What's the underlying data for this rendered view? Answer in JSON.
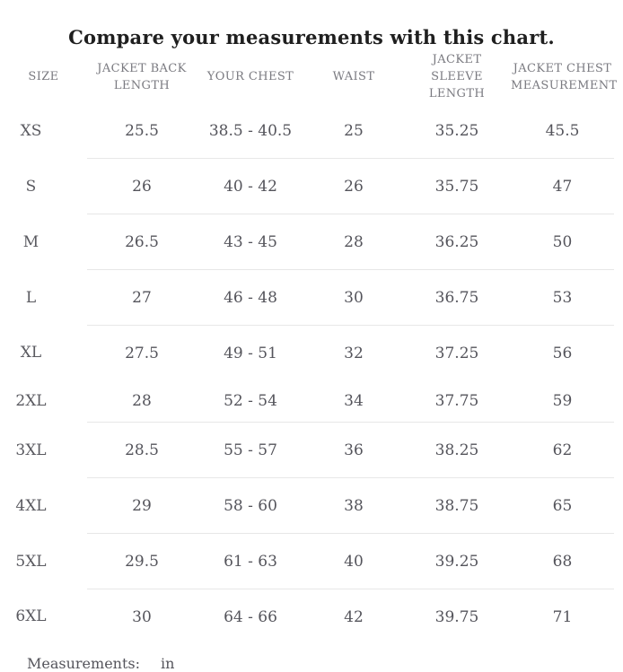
{
  "title": "Compare your measurements with this chart.",
  "chart_data": {
    "type": "table",
    "title": "Compare your measurements with this chart.",
    "columns": [
      "SIZE",
      "JACKET BACK LENGTH",
      "YOUR CHEST",
      "WAIST",
      "JACKET SLEEVE LENGTH",
      "JACKET CHEST MEASUREMENT"
    ],
    "rows": [
      [
        "XS",
        "25.5",
        "38.5 - 40.5",
        "25",
        "35.25",
        "45.5"
      ],
      [
        "S",
        "26",
        "40 - 42",
        "26",
        "35.75",
        "47"
      ],
      [
        "M",
        "26.5",
        "43 - 45",
        "28",
        "36.25",
        "50"
      ],
      [
        "L",
        "27",
        "46 - 48",
        "30",
        "36.75",
        "53"
      ],
      [
        "XL",
        "27.5",
        "49 - 51",
        "32",
        "37.25",
        "56"
      ],
      [
        "2XL",
        "28",
        "52 - 54",
        "34",
        "37.75",
        "59"
      ],
      [
        "3XL",
        "28.5",
        "55 - 57",
        "36",
        "38.25",
        "62"
      ],
      [
        "4XL",
        "29",
        "58 - 60",
        "38",
        "38.75",
        "65"
      ],
      [
        "5XL",
        "29.5",
        "61 - 63",
        "40",
        "39.25",
        "68"
      ],
      [
        "6XL",
        "30",
        "64 - 66",
        "42",
        "39.75",
        "71"
      ]
    ],
    "units": "in",
    "layout": {
      "grid": "horizontal row dividers only",
      "divider_missing_between": [
        "XL",
        "2XL"
      ]
    }
  },
  "footer": {
    "label": "Measurements:",
    "unit": "in"
  },
  "colors": {
    "background": "#ffffff",
    "title_text": "#1f1f1f",
    "header_text": "#7a7a80",
    "cell_text": "#54545b",
    "divider": "#e7e7e7"
  }
}
